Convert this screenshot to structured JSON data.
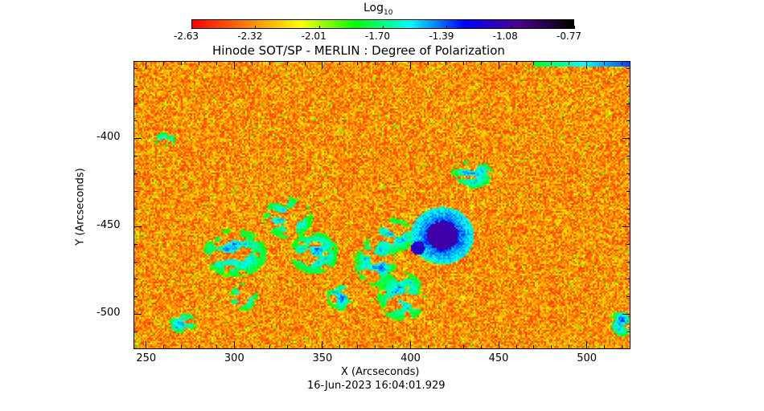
{
  "chart_data": {
    "type": "heatmap",
    "title": "Hinode SOT/SP - MERLIN : Degree of Polarization",
    "colorbar": {
      "label_base": "Log",
      "label_sub": "10",
      "ticks": [
        "-2.63",
        "-2.32",
        "-2.01",
        "-1.70",
        "-1.39",
        "-1.08",
        "-0.77"
      ],
      "range": [
        -2.63,
        -0.77
      ],
      "colormap": [
        "#ff0000",
        "#ff8000",
        "#ffff00",
        "#00ff00",
        "#00ffff",
        "#0000ff",
        "#500090",
        "#000000"
      ]
    },
    "xlabel": "X (Arcseconds)",
    "ylabel": "Y (Arcseconds)",
    "xlim": [
      243,
      525
    ],
    "ylim": [
      -520,
      -356
    ],
    "xticks": [
      "250",
      "300",
      "350",
      "400",
      "450",
      "500"
    ],
    "xtick_values": [
      250,
      300,
      350,
      400,
      450,
      500
    ],
    "yticks": [
      "-400",
      "-450",
      "-500"
    ],
    "ytick_values": [
      -400,
      -450,
      -500
    ],
    "features": {
      "sunspot_center": [
        418,
        -455
      ]
    }
  },
  "timestamp": "16-Jun-2023 16:04:01.929"
}
